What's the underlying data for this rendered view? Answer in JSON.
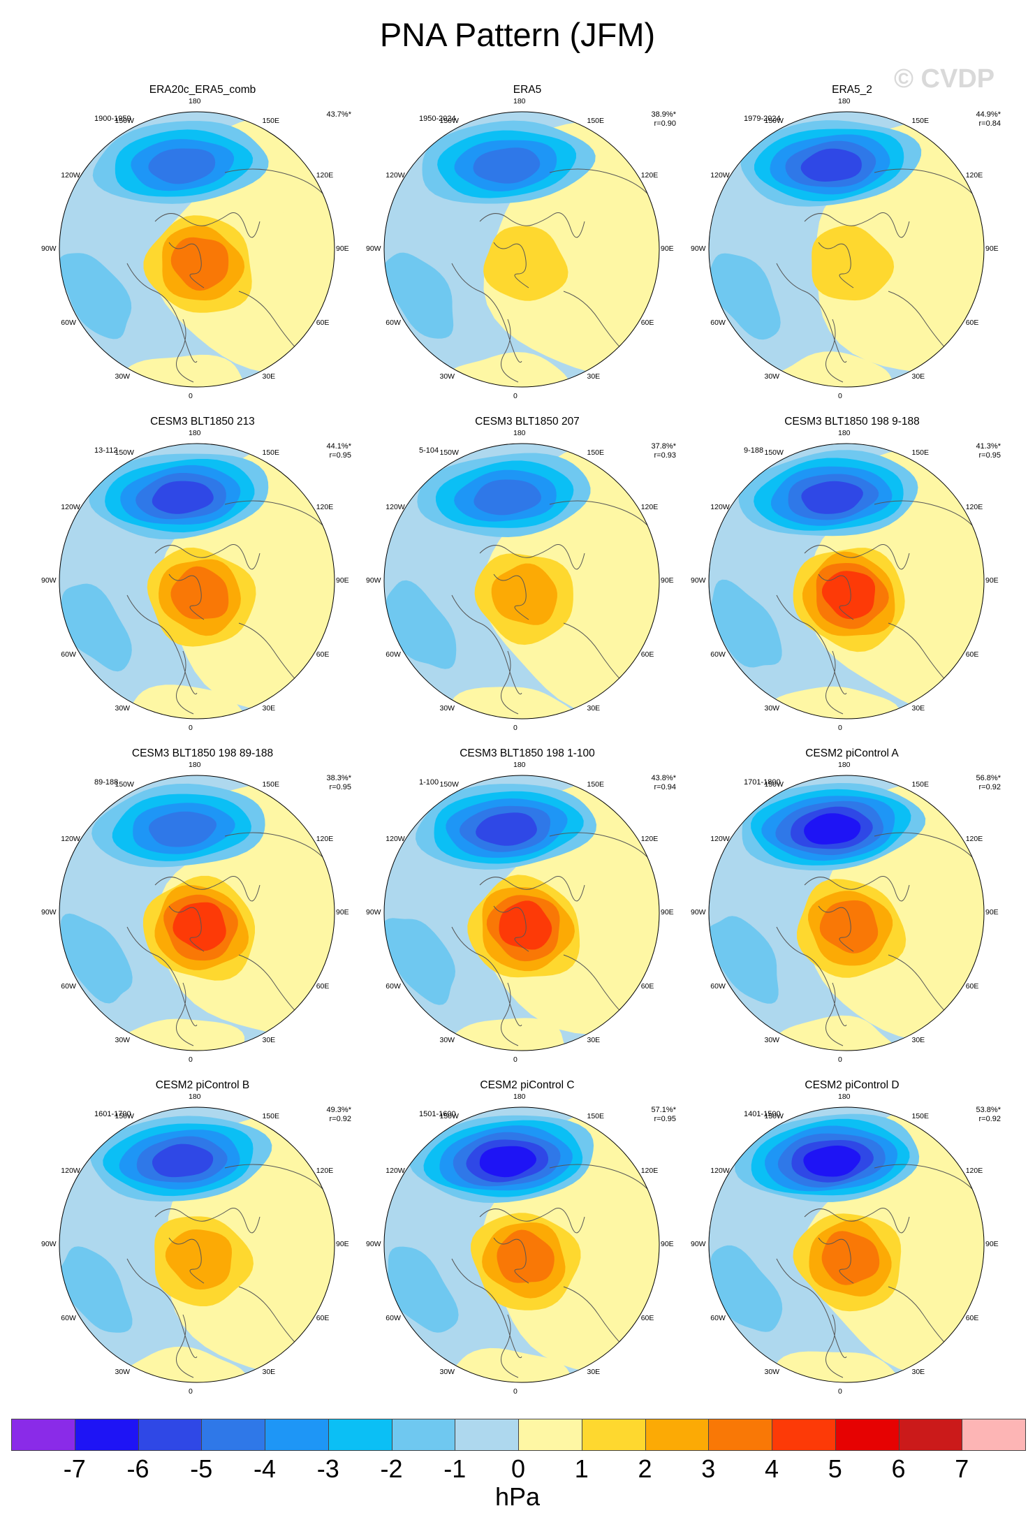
{
  "title": "PNA Pattern (JFM)",
  "watermark": "© CVDP",
  "chart_data": {
    "type": "polar-contour-map",
    "variable": "PNA Pattern (JFM)",
    "units": "hPa",
    "projection": "North polar stereographic",
    "longitude_labels": [
      "180",
      "150E",
      "120E",
      "90E",
      "60E",
      "30E",
      "0",
      "30W",
      "60W",
      "90W",
      "120W",
      "150W"
    ],
    "panels": [
      {
        "title": "ERA20c_ERA5_comb",
        "years": "1900-1959",
        "pct": "43.7%*",
        "r": "",
        "neg_min": -4.4,
        "pos_max": 3.3
      },
      {
        "title": "ERA5",
        "years": "1950-2024",
        "pct": "38.9%*",
        "r": "r=0.90",
        "neg_min": -4.6,
        "pos_max": 1.8
      },
      {
        "title": "ERA5_2",
        "years": "1979-2024",
        "pct": "44.9%*",
        "r": "r=0.84",
        "neg_min": -5.4,
        "pos_max": 1.7
      },
      {
        "title": "CESM3 BLT1850 213",
        "years": "13-112",
        "pct": "44.1%*",
        "r": "r=0.95",
        "neg_min": -5.2,
        "pos_max": 3.1
      },
      {
        "title": "CESM3 BLT1850 207",
        "years": "5-104",
        "pct": "37.8%*",
        "r": "r=0.93",
        "neg_min": -4.8,
        "pos_max": 2.6
      },
      {
        "title": "CESM3 BLT1850 198 9-188",
        "years": "9-188",
        "pct": "41.3%*",
        "r": "r=0.95",
        "neg_min": -5.0,
        "pos_max": 4.4
      },
      {
        "title": "CESM3 BLT1850 198 89-188",
        "years": "89-188",
        "pct": "38.3%*",
        "r": "r=0.95",
        "neg_min": -4.9,
        "pos_max": 4.2
      },
      {
        "title": "CESM3 BLT1850 198 1-100",
        "years": "1-100",
        "pct": "43.8%*",
        "r": "r=0.94",
        "neg_min": -5.6,
        "pos_max": 4.3
      },
      {
        "title": "CESM2 piControl A",
        "years": "1701-1800",
        "pct": "56.8%*",
        "r": "r=0.92",
        "neg_min": -6.4,
        "pos_max": 3.3
      },
      {
        "title": "CESM2 piControl B",
        "years": "1601-1700",
        "pct": "49.3%*",
        "r": "r=0.92",
        "neg_min": -5.6,
        "pos_max": 2.8
      },
      {
        "title": "CESM2 piControl C",
        "years": "1501-1600",
        "pct": "57.1%*",
        "r": "r=0.95",
        "neg_min": -6.3,
        "pos_max": 3.3
      },
      {
        "title": "CESM2 piControl D",
        "years": "1401-1500",
        "pct": "53.8%*",
        "r": "r=0.92",
        "neg_min": -6.1,
        "pos_max": 3.2
      }
    ],
    "colorbar": {
      "labels": [
        "-7",
        "-6",
        "-5",
        "-4",
        "-3",
        "-2",
        "-1",
        "0",
        "1",
        "2",
        "3",
        "4",
        "5",
        "6",
        "7"
      ],
      "colors": [
        "#8a2be8",
        "#1e14f5",
        "#2f48e6",
        "#2f78e8",
        "#1e96f6",
        "#0bbff5",
        "#6fc8f0",
        "#aed8ee",
        "#fef7a4",
        "#fed82f",
        "#fcaa05",
        "#f97806",
        "#fd3a07",
        "#e60202",
        "#cb1a1a",
        "#fdb5b5"
      ],
      "units": "hPa"
    }
  }
}
